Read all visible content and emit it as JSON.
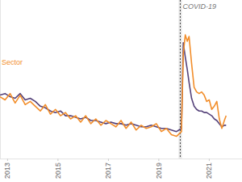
{
  "chart_data": {
    "type": "line",
    "x": [
      2012.7,
      2012.9,
      2013.1,
      2013.3,
      2013.5,
      2013.7,
      2013.9,
      2014.1,
      2014.3,
      2014.5,
      2014.7,
      2014.9,
      2015.1,
      2015.3,
      2015.5,
      2015.7,
      2015.9,
      2016.1,
      2016.3,
      2016.5,
      2016.7,
      2016.9,
      2017.1,
      2017.3,
      2017.5,
      2017.7,
      2017.9,
      2018.1,
      2018.3,
      2018.5,
      2018.7,
      2018.9,
      2019.1,
      2019.3,
      2019.5,
      2019.7,
      2019.9,
      2019.97,
      2020.05,
      2020.13,
      2020.2,
      2020.3,
      2020.4,
      2020.5,
      2020.6,
      2020.7,
      2020.8,
      2020.9,
      2021.0,
      2021.1,
      2021.2,
      2021.3,
      2021.4,
      2021.5,
      2021.6,
      2021.67
    ],
    "series": [
      {
        "color": "#55427a",
        "values": [
          40,
          41,
          39,
          38,
          41,
          37,
          38,
          36,
          33,
          32,
          30,
          29,
          30,
          27,
          27,
          26,
          25,
          26,
          24,
          24,
          23,
          22,
          23,
          22,
          22,
          21,
          22,
          21,
          20,
          20,
          21,
          20,
          19,
          19,
          18,
          17,
          19,
          73,
          64,
          56,
          48,
          38,
          33,
          31,
          30,
          30,
          29,
          29,
          28,
          27,
          25,
          24,
          22,
          20,
          21,
          21
        ]
      },
      {
        "name": "Sector",
        "color": "#f28e2b",
        "values": [
          39,
          37,
          41,
          35,
          40,
          34,
          36,
          33,
          30,
          34,
          28,
          31,
          27,
          29,
          25,
          27,
          23,
          27,
          22,
          25,
          21,
          24,
          22,
          20,
          24,
          19,
          23,
          18,
          21,
          19,
          20,
          22,
          17,
          19,
          15,
          14,
          17,
          66,
          78,
          74,
          77,
          60,
          45,
          42,
          41,
          42,
          40,
          36,
          37,
          31,
          33,
          36,
          25,
          19,
          24,
          27
        ]
      }
    ],
    "xlim": [
      2012.7,
      2022.3
    ],
    "xticks": [
      2013,
      2015,
      2017,
      2019,
      2021
    ],
    "ylim": [
      0,
      100
    ],
    "yticks": [],
    "tick_labels": "x",
    "annotations": [
      {
        "text": "COVID-19",
        "x": 2019.85
      }
    ]
  }
}
